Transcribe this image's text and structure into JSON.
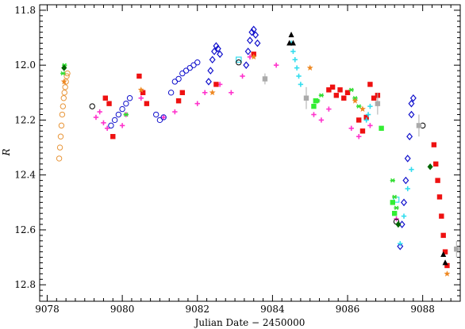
{
  "chart_data": {
    "type": "scatter",
    "xlabel": "Julian Date − 2450000",
    "ylabel": "R",
    "xlim": [
      9077.8,
      9089.0
    ],
    "ylim": [
      12.86,
      11.78
    ],
    "y_inverted": true,
    "grid": false,
    "legend": "none",
    "x_ticks": {
      "major": [
        9078,
        9080,
        9082,
        9084,
        9086,
        9088
      ],
      "labels": [
        "9078",
        "9080",
        "9082",
        "9084",
        "9086",
        "9088"
      ],
      "minor_step": 0.25
    },
    "y_ticks": {
      "major": [
        11.8,
        12.0,
        12.2,
        12.4,
        12.6,
        12.8
      ],
      "labels": [
        "11.8",
        "12.0",
        "12.2",
        "12.4",
        "12.6",
        "12.8"
      ],
      "minor_step": 0.02
    },
    "series": [
      {
        "marker": "circle-open",
        "color": "#e8963a",
        "x": [
          9078.32,
          9078.34,
          9078.36,
          9078.38,
          9078.4,
          9078.42,
          9078.44,
          9078.46,
          9078.48,
          9078.5,
          9078.52,
          9078.54
        ],
        "y": [
          12.34,
          12.3,
          12.26,
          12.22,
          12.18,
          12.15,
          12.12,
          12.1,
          12.08,
          12.06,
          12.04,
          12.03
        ]
      },
      {
        "marker": "cross",
        "color": "#ff33cc",
        "x": [
          9079.3,
          9079.4,
          9079.5,
          9079.6,
          9080.0,
          9080.1,
          9080.5,
          9081.1,
          9081.4,
          9082.0,
          9082.2,
          9082.6,
          9082.9,
          9083.2,
          9083.4,
          9084.1,
          9085.1,
          9085.3,
          9085.5,
          9086.1,
          9086.3,
          9086.6,
          9087.3
        ],
        "y": [
          12.19,
          12.17,
          12.21,
          12.23,
          12.22,
          12.18,
          12.12,
          12.19,
          12.17,
          12.14,
          12.1,
          12.07,
          12.1,
          12.04,
          11.97,
          12.0,
          12.18,
          12.2,
          12.16,
          12.23,
          12.26,
          12.22,
          12.56
        ]
      },
      {
        "marker": "square-filled",
        "color": "#ee1111",
        "x": [
          9079.55,
          9079.65,
          9079.75,
          9080.45,
          9080.55,
          9080.65,
          9081.5,
          9081.6,
          9082.5,
          9083.5,
          9085.5,
          9085.6,
          9085.7,
          9085.8,
          9085.9,
          9086.0,
          9086.3,
          9086.4,
          9086.5,
          9086.6,
          9086.7,
          9086.8,
          9088.3,
          9088.35,
          9088.4,
          9088.45,
          9088.5,
          9088.55,
          9088.6,
          9088.65
        ],
        "y": [
          12.12,
          12.14,
          12.26,
          12.04,
          12.1,
          12.14,
          12.13,
          12.1,
          12.07,
          11.96,
          12.09,
          12.08,
          12.11,
          12.09,
          12.12,
          12.1,
          12.2,
          12.24,
          12.19,
          12.07,
          12.12,
          12.11,
          12.29,
          12.36,
          12.42,
          12.48,
          12.55,
          12.62,
          12.68,
          12.73
        ]
      },
      {
        "marker": "circle-open",
        "color": "#1111cc",
        "x": [
          9079.7,
          9079.8,
          9079.9,
          9080.0,
          9080.1,
          9080.2,
          9080.9,
          9081.0,
          9081.1,
          9081.3,
          9081.4,
          9081.5,
          9081.6,
          9081.7,
          9081.8,
          9081.9,
          9082.0
        ],
        "y": [
          12.22,
          12.2,
          12.18,
          12.16,
          12.14,
          12.12,
          12.18,
          12.2,
          12.19,
          12.1,
          12.06,
          12.05,
          12.03,
          12.02,
          12.01,
          12.0,
          11.99
        ]
      },
      {
        "marker": "diamond-open",
        "color": "#1111cc",
        "x": [
          9082.3,
          9082.35,
          9082.4,
          9082.45,
          9082.5,
          9082.55,
          9082.6,
          9083.3,
          9083.35,
          9083.4,
          9083.45,
          9083.5,
          9083.55,
          9083.6,
          9087.4,
          9087.45,
          9087.5,
          9087.55,
          9087.6,
          9087.65,
          9087.7,
          9087.75,
          9087.7
        ],
        "y": [
          12.06,
          12.02,
          11.98,
          11.95,
          11.93,
          11.94,
          11.96,
          12.0,
          11.95,
          11.91,
          11.88,
          11.87,
          11.89,
          11.92,
          12.66,
          12.58,
          12.5,
          12.42,
          12.34,
          12.26,
          12.18,
          12.12,
          12.14
        ]
      },
      {
        "marker": "cross",
        "color": "#33ddee",
        "x": [
          9084.5,
          9084.55,
          9084.6,
          9084.65,
          9084.7,
          9084.75,
          9086.5,
          9086.55,
          9086.6,
          9087.4,
          9087.5,
          9087.6,
          9087.7
        ],
        "y": [
          11.92,
          11.95,
          11.98,
          12.01,
          12.04,
          12.07,
          12.2,
          12.18,
          12.15,
          12.65,
          12.55,
          12.45,
          12.38
        ]
      },
      {
        "marker": "square-open",
        "color": "#33ddee",
        "x": [
          9083.1,
          9087.3
        ],
        "y": [
          11.98,
          12.49
        ]
      },
      {
        "marker": "asterisk",
        "color": "#33dd33",
        "x": [
          9078.42,
          9078.46,
          9080.1,
          9085.2,
          9085.3,
          9086.1,
          9086.2,
          9086.3,
          9087.2,
          9087.25,
          9087.3
        ],
        "y": [
          12.03,
          12.0,
          12.18,
          12.13,
          12.11,
          12.09,
          12.12,
          12.15,
          12.42,
          12.48,
          12.52
        ]
      },
      {
        "marker": "square-filled",
        "color": "#33ee33",
        "x": [
          9085.1,
          9085.15,
          9086.9,
          9087.2,
          9087.25
        ],
        "y": [
          12.15,
          12.13,
          12.23,
          12.5,
          12.54
        ]
      },
      {
        "marker": "triangle-filled",
        "color": "#000000",
        "x": [
          9084.45,
          9084.5,
          9084.55,
          9088.55,
          9088.6
        ],
        "y": [
          11.92,
          11.89,
          11.92,
          12.69,
          12.72
        ]
      },
      {
        "marker": "circle-open",
        "color": "#000000",
        "x": [
          9079.2,
          9083.1,
          9087.3,
          9088.0
        ],
        "y": [
          12.15,
          11.99,
          12.57,
          12.22
        ]
      },
      {
        "marker": "diamond-filled",
        "color": "#006600",
        "x": [
          9078.45,
          9087.35,
          9088.2
        ],
        "y": [
          12.01,
          12.58,
          12.37
        ]
      },
      {
        "marker": "star-filled",
        "color": "#ee8822",
        "x": [
          9078.45,
          9080.5,
          9082.4,
          9083.5,
          9085.0,
          9086.2,
          9086.4,
          9088.65
        ],
        "y": [
          12.06,
          12.09,
          12.1,
          11.97,
          12.01,
          12.13,
          12.16,
          12.76
        ]
      },
      {
        "marker": "square-filled",
        "color": "#aaaaaa",
        "x": [
          9083.8,
          9084.9,
          9086.8,
          9087.9,
          9088.9
        ],
        "y": [
          12.05,
          12.12,
          12.14,
          12.22,
          12.67
        ],
        "err": [
          0.02,
          0.04,
          0.04,
          0.04,
          0.03
        ]
      }
    ]
  }
}
